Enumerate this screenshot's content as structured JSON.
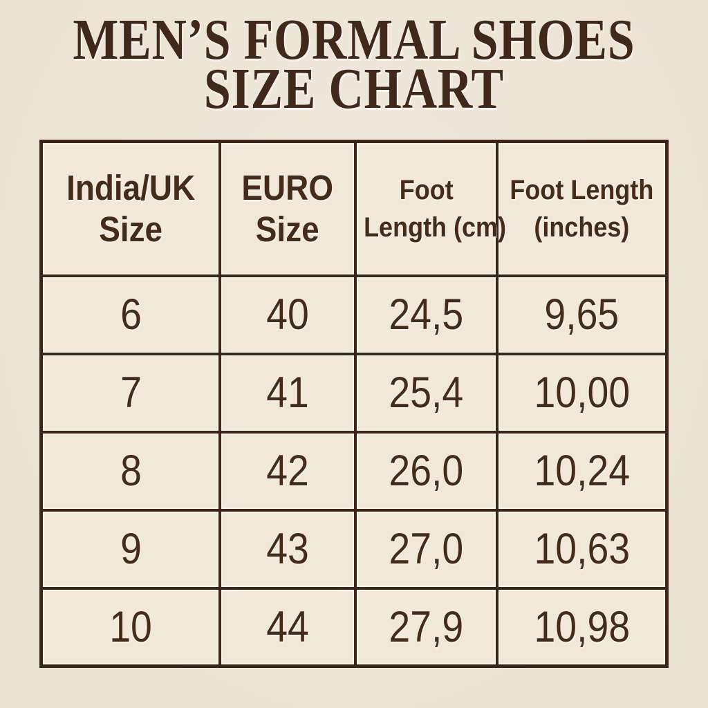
{
  "page": {
    "background_color": "#eee5d7",
    "title_line1": "MEN’S FORMAL SHOES",
    "title_line2": "SIZE CHART"
  },
  "colors": {
    "title_text": "#40291a",
    "table_text": "#442c1b",
    "table_border": "#3a2518",
    "cell_background": "#f1e8d9"
  },
  "table": {
    "header_lines": [
      [
        "India/UK",
        "Size"
      ],
      [
        "EURO",
        "Size"
      ],
      [
        "Foot",
        "Length (cm)"
      ],
      [
        "Foot Length",
        "(inches)"
      ]
    ]
  },
  "chart_data": {
    "type": "table",
    "title": "MEN’S FORMAL SHOES SIZE CHART",
    "columns": [
      "India/UK Size",
      "EURO Size",
      "Foot Length (cm)",
      "Foot Length (inches)"
    ],
    "rows": [
      [
        "6",
        "40",
        "24,5",
        "9,65"
      ],
      [
        "7",
        "41",
        "25,4",
        "10,00"
      ],
      [
        "8",
        "42",
        "26,0",
        "10,24"
      ],
      [
        "9",
        "43",
        "27,0",
        "10,63"
      ],
      [
        "10",
        "44",
        "27,9",
        "10,98"
      ]
    ]
  }
}
